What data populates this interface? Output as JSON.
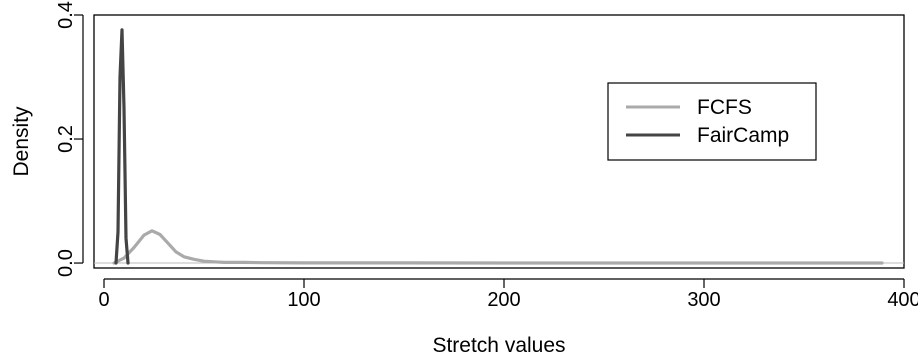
{
  "chart_data": {
    "type": "line",
    "title": "",
    "xlabel": "Stretch values",
    "ylabel": "Density",
    "xlim": [
      -5,
      400
    ],
    "ylim": [
      -0.008,
      0.4
    ],
    "xticks": [
      0,
      100,
      200,
      300,
      400
    ],
    "xtick_labels": [
      "0",
      "100",
      "200",
      "300",
      "400"
    ],
    "yticks": [
      0.0,
      0.2,
      0.4
    ],
    "ytick_labels": [
      "0.0",
      "0.2",
      "0.4"
    ],
    "zero_baseline": true,
    "grid": false,
    "legend_position": "right",
    "series": [
      {
        "name": "FCFS",
        "color": "#aaaaaa",
        "x": [
          5,
          10,
          15,
          20,
          24,
          28,
          32,
          36,
          40,
          45,
          50,
          55,
          60,
          70,
          80,
          100,
          150,
          200,
          250,
          300,
          350,
          389
        ],
        "y": [
          0.0,
          0.008,
          0.025,
          0.045,
          0.052,
          0.046,
          0.032,
          0.018,
          0.01,
          0.006,
          0.003,
          0.002,
          0.001,
          0.001,
          0.0005,
          0.0003,
          0.0002,
          0.0001,
          0.0001,
          0.0001,
          0.0001,
          0.0
        ]
      },
      {
        "name": "FairCamp",
        "color": "#444444",
        "x": [
          6,
          7,
          8,
          9,
          10,
          11,
          12
        ],
        "y": [
          0.0,
          0.05,
          0.3,
          0.376,
          0.25,
          0.04,
          0.0
        ]
      }
    ]
  }
}
